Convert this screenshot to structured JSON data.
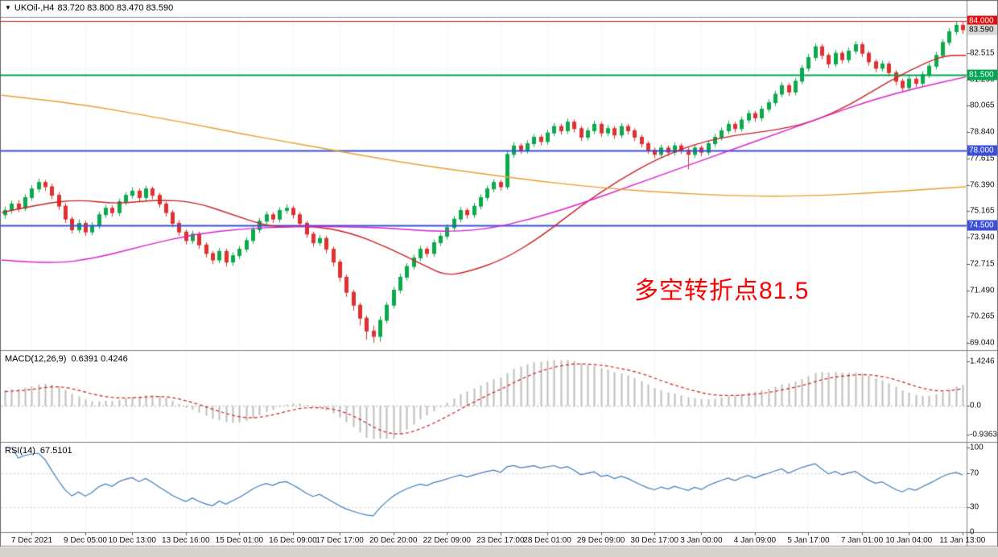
{
  "header": {
    "dropdown_icon": "▼",
    "symbol_timeframe": "UKOil-,H4",
    "ohlc": "83.720 83.800 83.470 83.590"
  },
  "annotation": {
    "text": "多空转折点81.5",
    "color": "#ff0000"
  },
  "price_axis": {
    "ticks": [
      "82.515",
      "81.290",
      "80.065",
      "78.840",
      "77.615",
      "76.390",
      "75.165",
      "73.940",
      "72.715",
      "71.490",
      "70.265",
      "69.040"
    ],
    "badges": [
      {
        "text": "84.000",
        "price": 84.0,
        "bg": "#e01010",
        "fg": "#ffffff"
      },
      {
        "text": "83.590",
        "price": 83.59,
        "bg": "#d9d9d9",
        "fg": "#000000"
      },
      {
        "text": "81.500",
        "price": 81.5,
        "bg": "#00a651",
        "fg": "#ffffff"
      },
      {
        "text": "78.000",
        "price": 78.0,
        "bg": "#3a50d9",
        "fg": "#ffffff"
      },
      {
        "text": "74.500",
        "price": 74.5,
        "bg": "#3a50d9",
        "fg": "#ffffff"
      }
    ]
  },
  "chart_data": {
    "type": "candlestick",
    "symbol": "UKOil",
    "timeframe": "H4",
    "title": "UKOil-,H4 83.720 83.800 83.470 83.590",
    "price_range": {
      "min": 68.9,
      "max": 84.15
    },
    "x_labels": [
      "7 Dec 2021",
      "9 Dec 05:00",
      "10 Dec 13:00",
      "13 Dec 16:00",
      "15 Dec 01:00",
      "16 Dec 09:00",
      "17 Dec 17:00",
      "20 Dec 20:00",
      "22 Dec 09:00",
      "23 Dec 17:00",
      "28 Dec 01:00",
      "29 Dec 09:00",
      "30 Dec 17:00",
      "3 Jan 00:00",
      "4 Jan 09:00",
      "5 Jan 17:00",
      "7 Jan 01:00",
      "10 Jan 04:00",
      "11 Jan 13:00"
    ],
    "bull_color": "#0ba94c",
    "bear_color": "#e03030",
    "levels": [
      {
        "price": 84.0,
        "color": "#e01010",
        "width": 1
      },
      {
        "price": 81.5,
        "color": "#00a651",
        "width": 2
      },
      {
        "price": 78.0,
        "color": "#3a50d9",
        "width": 2
      },
      {
        "price": 74.5,
        "color": "#3a50d9",
        "width": 2
      }
    ],
    "candles": [
      [
        75.0,
        75.38,
        74.82,
        75.2
      ],
      [
        75.2,
        75.65,
        75.05,
        75.5
      ],
      [
        75.5,
        75.68,
        75.12,
        75.3
      ],
      [
        75.3,
        75.95,
        75.18,
        75.8
      ],
      [
        75.8,
        76.38,
        75.65,
        76.2
      ],
      [
        76.2,
        76.68,
        76.05,
        76.5
      ],
      [
        76.5,
        76.62,
        76.1,
        76.3
      ],
      [
        76.3,
        76.45,
        75.72,
        75.9
      ],
      [
        75.9,
        76.05,
        75.22,
        75.4
      ],
      [
        75.4,
        75.55,
        74.62,
        74.8
      ],
      [
        74.8,
        74.92,
        74.12,
        74.3
      ],
      [
        74.3,
        74.78,
        74.15,
        74.6
      ],
      [
        74.6,
        74.72,
        74.02,
        74.2
      ],
      [
        74.2,
        74.66,
        74.05,
        74.5
      ],
      [
        74.5,
        75.15,
        74.35,
        75.0
      ],
      [
        75.0,
        75.46,
        74.85,
        75.3
      ],
      [
        75.3,
        75.44,
        74.92,
        75.1
      ],
      [
        75.1,
        75.75,
        74.95,
        75.6
      ],
      [
        75.6,
        76.05,
        75.45,
        75.9
      ],
      [
        75.9,
        76.28,
        75.75,
        76.1
      ],
      [
        76.1,
        76.22,
        75.62,
        75.8
      ],
      [
        75.8,
        76.35,
        75.65,
        76.2
      ],
      [
        76.2,
        76.32,
        75.72,
        75.9
      ],
      [
        75.9,
        76.02,
        75.32,
        75.5
      ],
      [
        75.5,
        75.62,
        74.92,
        75.1
      ],
      [
        75.1,
        75.22,
        74.42,
        74.6
      ],
      [
        74.6,
        74.75,
        74.02,
        74.2
      ],
      [
        74.2,
        74.32,
        73.62,
        73.8
      ],
      [
        73.8,
        74.26,
        73.65,
        74.1
      ],
      [
        74.1,
        74.22,
        73.42,
        73.6
      ],
      [
        73.6,
        73.72,
        73.02,
        73.2
      ],
      [
        73.2,
        73.32,
        72.7,
        72.9
      ],
      [
        72.9,
        73.45,
        72.75,
        73.3
      ],
      [
        73.3,
        73.42,
        72.6,
        72.8
      ],
      [
        72.8,
        73.26,
        72.62,
        73.1
      ],
      [
        73.1,
        73.55,
        72.95,
        73.4
      ],
      [
        73.4,
        73.95,
        73.25,
        73.8
      ],
      [
        73.8,
        74.45,
        73.65,
        74.3
      ],
      [
        74.3,
        74.85,
        74.15,
        74.7
      ],
      [
        74.7,
        75.16,
        74.55,
        75.0
      ],
      [
        75.0,
        75.12,
        74.62,
        74.8
      ],
      [
        74.8,
        75.35,
        74.65,
        75.2
      ],
      [
        75.2,
        75.48,
        75.05,
        75.3
      ],
      [
        75.3,
        75.42,
        74.82,
        75.0
      ],
      [
        75.0,
        75.12,
        74.42,
        74.6
      ],
      [
        74.6,
        74.72,
        73.92,
        74.1
      ],
      [
        74.1,
        74.22,
        73.52,
        73.7
      ],
      [
        73.7,
        74.06,
        73.55,
        73.9
      ],
      [
        73.9,
        74.02,
        73.22,
        73.4
      ],
      [
        73.4,
        73.52,
        72.6,
        72.8
      ],
      [
        72.8,
        72.92,
        71.9,
        72.1
      ],
      [
        72.1,
        72.22,
        71.18,
        71.4
      ],
      [
        71.4,
        71.52,
        70.55,
        70.8
      ],
      [
        70.8,
        70.92,
        69.85,
        70.2
      ],
      [
        70.2,
        70.32,
        69.2,
        69.6
      ],
      [
        69.6,
        69.85,
        69.05,
        69.35
      ],
      [
        69.35,
        70.28,
        69.1,
        70.1
      ],
      [
        70.1,
        70.95,
        69.95,
        70.8
      ],
      [
        70.8,
        71.66,
        70.65,
        71.5
      ],
      [
        71.5,
        72.26,
        71.35,
        72.1
      ],
      [
        72.1,
        72.75,
        71.95,
        72.6
      ],
      [
        72.6,
        73.15,
        72.45,
        73.0
      ],
      [
        73.0,
        73.56,
        72.85,
        73.4
      ],
      [
        73.4,
        73.52,
        73.02,
        73.2
      ],
      [
        73.2,
        73.85,
        73.05,
        73.7
      ],
      [
        73.7,
        74.16,
        73.55,
        74.0
      ],
      [
        74.0,
        74.55,
        73.85,
        74.4
      ],
      [
        74.4,
        74.95,
        74.25,
        74.8
      ],
      [
        74.8,
        75.36,
        74.65,
        75.2
      ],
      [
        75.2,
        75.32,
        74.82,
        75.0
      ],
      [
        75.0,
        75.55,
        74.85,
        75.4
      ],
      [
        75.4,
        75.95,
        75.25,
        75.8
      ],
      [
        75.8,
        76.36,
        75.65,
        76.2
      ],
      [
        76.2,
        76.65,
        76.05,
        76.5
      ],
      [
        76.5,
        76.62,
        76.12,
        76.3
      ],
      [
        76.3,
        77.95,
        76.18,
        77.8
      ],
      [
        77.8,
        78.36,
        77.65,
        78.2
      ],
      [
        78.2,
        78.32,
        77.82,
        78.0
      ],
      [
        78.0,
        78.46,
        77.85,
        78.3
      ],
      [
        78.3,
        78.75,
        78.15,
        78.6
      ],
      [
        78.6,
        78.72,
        78.22,
        78.4
      ],
      [
        78.4,
        78.95,
        78.25,
        78.8
      ],
      [
        78.8,
        79.26,
        78.65,
        79.1
      ],
      [
        79.1,
        79.22,
        78.72,
        78.9
      ],
      [
        78.9,
        79.46,
        78.75,
        79.3
      ],
      [
        79.3,
        79.42,
        78.82,
        79.0
      ],
      [
        79.0,
        79.12,
        78.42,
        78.6
      ],
      [
        78.6,
        79.06,
        78.45,
        78.9
      ],
      [
        78.9,
        79.36,
        78.75,
        79.2
      ],
      [
        79.2,
        79.32,
        78.62,
        78.8
      ],
      [
        78.8,
        79.16,
        78.65,
        79.0
      ],
      [
        79.0,
        79.12,
        78.52,
        78.7
      ],
      [
        78.7,
        79.26,
        78.55,
        79.1
      ],
      [
        79.1,
        79.22,
        78.72,
        78.9
      ],
      [
        78.9,
        79.02,
        78.42,
        78.6
      ],
      [
        78.6,
        78.72,
        78.12,
        78.3
      ],
      [
        78.3,
        78.42,
        77.82,
        78.0
      ],
      [
        78.0,
        78.12,
        77.62,
        77.8
      ],
      [
        77.8,
        78.26,
        77.65,
        78.1
      ],
      [
        78.1,
        78.22,
        77.72,
        77.9
      ],
      [
        77.9,
        78.36,
        77.75,
        78.2
      ],
      [
        78.2,
        78.32,
        77.82,
        78.0
      ],
      [
        78.0,
        78.12,
        77.1,
        77.8
      ],
      [
        77.8,
        78.26,
        77.65,
        78.1
      ],
      [
        78.1,
        78.22,
        77.72,
        77.9
      ],
      [
        77.9,
        78.46,
        77.75,
        78.3
      ],
      [
        78.3,
        78.76,
        78.15,
        78.6
      ],
      [
        78.6,
        79.06,
        78.45,
        78.9
      ],
      [
        78.9,
        79.36,
        78.75,
        79.2
      ],
      [
        79.2,
        79.32,
        78.82,
        79.0
      ],
      [
        79.0,
        79.56,
        78.85,
        79.4
      ],
      [
        79.4,
        79.86,
        79.25,
        79.7
      ],
      [
        79.7,
        79.82,
        79.32,
        79.5
      ],
      [
        79.5,
        80.06,
        79.35,
        79.9
      ],
      [
        79.9,
        80.36,
        79.75,
        80.2
      ],
      [
        80.2,
        80.76,
        80.05,
        80.6
      ],
      [
        80.6,
        81.16,
        80.45,
        81.0
      ],
      [
        81.0,
        81.12,
        80.52,
        80.7
      ],
      [
        80.7,
        81.36,
        80.55,
        81.2
      ],
      [
        81.2,
        81.96,
        81.05,
        81.8
      ],
      [
        81.8,
        82.46,
        81.65,
        82.3
      ],
      [
        82.3,
        82.96,
        82.15,
        82.8
      ],
      [
        82.8,
        82.92,
        82.22,
        82.4
      ],
      [
        82.4,
        82.52,
        81.82,
        82.0
      ],
      [
        82.0,
        82.66,
        81.85,
        82.5
      ],
      [
        82.5,
        82.62,
        82.02,
        82.2
      ],
      [
        82.2,
        82.76,
        82.05,
        82.6
      ],
      [
        82.6,
        83.06,
        82.45,
        82.9
      ],
      [
        82.9,
        83.02,
        82.32,
        82.5
      ],
      [
        82.5,
        82.62,
        81.92,
        82.1
      ],
      [
        82.1,
        82.22,
        81.62,
        81.8
      ],
      [
        81.8,
        82.16,
        81.65,
        82.0
      ],
      [
        82.0,
        82.12,
        81.42,
        81.6
      ],
      [
        81.6,
        81.72,
        81.02,
        81.2
      ],
      [
        81.2,
        81.32,
        80.72,
        80.9
      ],
      [
        80.9,
        81.46,
        80.75,
        81.3
      ],
      [
        81.3,
        81.42,
        80.92,
        81.1
      ],
      [
        81.1,
        81.66,
        80.95,
        81.5
      ],
      [
        81.5,
        82.06,
        81.35,
        81.9
      ],
      [
        81.9,
        82.56,
        81.75,
        82.4
      ],
      [
        82.4,
        83.16,
        82.25,
        83.0
      ],
      [
        83.0,
        83.66,
        82.85,
        83.5
      ],
      [
        83.5,
        83.98,
        83.35,
        83.8
      ],
      [
        83.8,
        83.95,
        83.4,
        83.59
      ]
    ],
    "moving_averages": [
      {
        "name": "MA-fast-red",
        "color": "#cc2222",
        "points": [
          [
            0.0,
            75.1
          ],
          [
            0.04,
            75.5
          ],
          [
            0.08,
            75.7
          ],
          [
            0.12,
            75.5
          ],
          [
            0.16,
            75.7
          ],
          [
            0.2,
            75.6
          ],
          [
            0.24,
            75.0
          ],
          [
            0.28,
            74.4
          ],
          [
            0.32,
            74.5
          ],
          [
            0.36,
            74.2
          ],
          [
            0.4,
            73.5
          ],
          [
            0.44,
            72.6
          ],
          [
            0.46,
            72.2
          ],
          [
            0.48,
            72.3
          ],
          [
            0.52,
            72.9
          ],
          [
            0.56,
            74.0
          ],
          [
            0.6,
            75.4
          ],
          [
            0.64,
            76.6
          ],
          [
            0.68,
            77.6
          ],
          [
            0.72,
            78.3
          ],
          [
            0.76,
            78.7
          ],
          [
            0.8,
            78.9
          ],
          [
            0.84,
            79.3
          ],
          [
            0.88,
            80.1
          ],
          [
            0.92,
            81.2
          ],
          [
            0.96,
            82.1
          ],
          [
            0.98,
            82.4
          ],
          [
            1.0,
            82.4
          ]
        ]
      },
      {
        "name": "MA-mid-magenta",
        "color": "#dd22cc",
        "points": [
          [
            0.0,
            72.9
          ],
          [
            0.05,
            72.7
          ],
          [
            0.1,
            73.0
          ],
          [
            0.15,
            73.6
          ],
          [
            0.2,
            74.1
          ],
          [
            0.25,
            74.35
          ],
          [
            0.3,
            74.45
          ],
          [
            0.35,
            74.45
          ],
          [
            0.4,
            74.4
          ],
          [
            0.45,
            74.2
          ],
          [
            0.5,
            74.3
          ],
          [
            0.55,
            74.8
          ],
          [
            0.6,
            75.5
          ],
          [
            0.65,
            76.3
          ],
          [
            0.7,
            77.1
          ],
          [
            0.75,
            77.9
          ],
          [
            0.8,
            78.7
          ],
          [
            0.85,
            79.5
          ],
          [
            0.9,
            80.3
          ],
          [
            0.95,
            80.9
          ],
          [
            1.0,
            81.4
          ]
        ]
      },
      {
        "name": "MA-slow-orange",
        "color": "#e8a030",
        "points": [
          [
            0.0,
            80.55
          ],
          [
            0.05,
            80.3
          ],
          [
            0.1,
            80.0
          ],
          [
            0.15,
            79.6
          ],
          [
            0.2,
            79.2
          ],
          [
            0.25,
            78.75
          ],
          [
            0.3,
            78.35
          ],
          [
            0.35,
            77.95
          ],
          [
            0.4,
            77.55
          ],
          [
            0.45,
            77.2
          ],
          [
            0.5,
            76.9
          ],
          [
            0.55,
            76.6
          ],
          [
            0.6,
            76.35
          ],
          [
            0.65,
            76.15
          ],
          [
            0.7,
            76.0
          ],
          [
            0.75,
            75.9
          ],
          [
            0.8,
            75.85
          ],
          [
            0.85,
            75.9
          ],
          [
            0.9,
            76.0
          ],
          [
            0.95,
            76.15
          ],
          [
            1.0,
            76.3
          ]
        ]
      }
    ],
    "macd": {
      "label": "MACD(12,26,9)",
      "values": "0.6391 0.4246",
      "fast": 12,
      "slow": 26,
      "signal": 9,
      "scale_labels": [
        "1.4246",
        "0.0",
        "-0.9363"
      ],
      "scale_values": [
        1.4246,
        0,
        -0.9363
      ],
      "histogram_color": "#bdbdbd",
      "signal_color": "#cc2222"
    },
    "rsi": {
      "label": "RSI(14)",
      "value": "67.5101",
      "period": 14,
      "scale_labels": [
        "100",
        "70",
        "30",
        "0"
      ],
      "scale_values": [
        100,
        70,
        30,
        0
      ],
      "line_color": "#3f7cba",
      "levels": [
        70,
        30
      ]
    }
  }
}
